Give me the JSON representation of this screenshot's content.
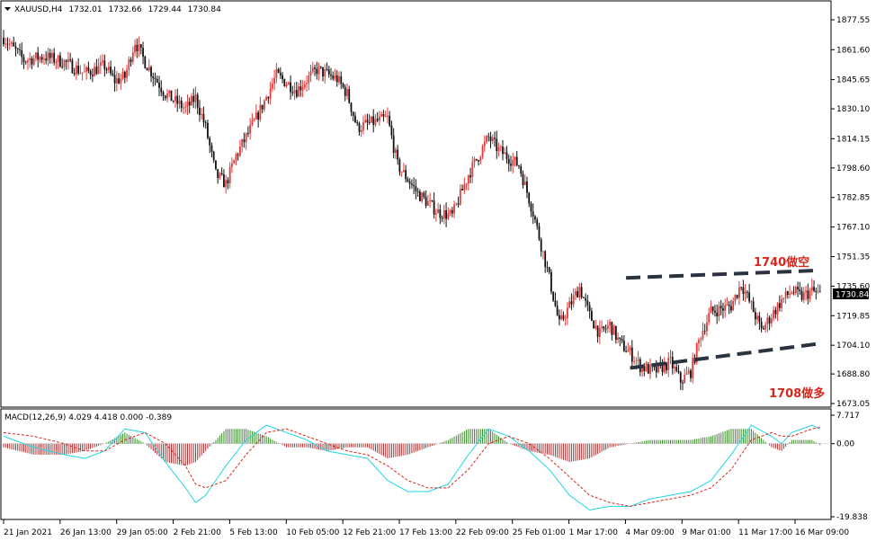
{
  "chart_data": [
    {
      "type": "candlestick",
      "title": "XAUUSD,H4",
      "ohlc_header": [
        "1732.01",
        "1732.66",
        "1729.44",
        "1730.84"
      ],
      "current_price": "1730.84",
      "yticks": [
        "1877.55",
        "1861.60",
        "1845.65",
        "1830.10",
        "1814.15",
        "1798.60",
        "1782.85",
        "1767.10",
        "1751.35",
        "1735.60",
        "1719.85",
        "1704.10",
        "1688.80",
        "1673.05"
      ],
      "ylim": [
        1673.05,
        1877.55
      ],
      "xticks": [
        "21 Jan 2021",
        "26 Jan 13:00",
        "29 Jan 05:00",
        "2 Feb 21:00",
        "5 Feb 13:00",
        "10 Feb 05:00",
        "12 Feb 21:00",
        "17 Feb 13:00",
        "22 Feb 09:00",
        "25 Feb 01:00",
        "1 Mar 17:00",
        "4 Mar 09:00",
        "9 Mar 01:00",
        "11 Mar 17:00",
        "16 Mar 09:00"
      ],
      "price_path": [
        [
          0,
          1868
        ],
        [
          10,
          1856
        ],
        [
          20,
          1858
        ],
        [
          30,
          1855
        ],
        [
          40,
          1849
        ],
        [
          50,
          1853
        ],
        [
          55,
          1845
        ],
        [
          60,
          1847
        ],
        [
          65,
          1866
        ],
        [
          70,
          1855
        ],
        [
          80,
          1838
        ],
        [
          90,
          1830
        ],
        [
          95,
          1836
        ],
        [
          100,
          1820
        ],
        [
          105,
          1795
        ],
        [
          110,
          1790
        ],
        [
          115,
          1805
        ],
        [
          125,
          1825
        ],
        [
          135,
          1848
        ],
        [
          145,
          1840
        ],
        [
          155,
          1851
        ],
        [
          165,
          1846
        ],
        [
          170,
          1838
        ],
        [
          175,
          1820
        ],
        [
          180,
          1822
        ],
        [
          190,
          1825
        ],
        [
          195,
          1800
        ],
        [
          205,
          1785
        ],
        [
          215,
          1775
        ],
        [
          222,
          1773
        ],
        [
          230,
          1795
        ],
        [
          240,
          1815
        ],
        [
          245,
          1808
        ],
        [
          255,
          1800
        ],
        [
          262,
          1775
        ],
        [
          270,
          1740
        ],
        [
          275,
          1715
        ],
        [
          280,
          1725
        ],
        [
          285,
          1735
        ],
        [
          290,
          1720
        ],
        [
          295,
          1710
        ],
        [
          300,
          1715
        ],
        [
          305,
          1705
        ],
        [
          310,
          1700
        ],
        [
          315,
          1693
        ],
        [
          322,
          1690
        ],
        [
          330,
          1695
        ],
        [
          335,
          1685
        ],
        [
          340,
          1690
        ],
        [
          345,
          1710
        ],
        [
          350,
          1722
        ],
        [
          360,
          1725
        ],
        [
          365,
          1737
        ],
        [
          370,
          1725
        ],
        [
          375,
          1712
        ],
        [
          380,
          1720
        ],
        [
          385,
          1728
        ],
        [
          390,
          1733
        ],
        [
          395,
          1730
        ],
        [
          400,
          1733
        ],
        [
          404,
          1730.84
        ]
      ],
      "annotations": [
        {
          "text": "1740做空",
          "line": [
            [
              1740,
              308
            ],
            [
              1744,
              404
            ]
          ]
        },
        {
          "text": "1708做多",
          "line": [
            [
              1692,
              310
            ],
            [
              1705,
              404
            ]
          ]
        }
      ],
      "colors": {
        "up": "#e23a3a",
        "down": "#111111",
        "trend": "#2b3340"
      }
    },
    {
      "type": "bar",
      "title": "MACD(12,26,9) 4.029 4.418 0.000 -0.389",
      "yticks": [
        "7.717",
        "0.00",
        "-19.838"
      ],
      "ylim": [
        -19.838,
        7.717
      ],
      "macd_path": [
        [
          0,
          2
        ],
        [
          15,
          -1
        ],
        [
          30,
          -3
        ],
        [
          40,
          -4
        ],
        [
          50,
          -2
        ],
        [
          60,
          4
        ],
        [
          70,
          3
        ],
        [
          80,
          -5
        ],
        [
          90,
          -12
        ],
        [
          95,
          -16
        ],
        [
          100,
          -14
        ],
        [
          110,
          -6
        ],
        [
          120,
          1
        ],
        [
          130,
          5
        ],
        [
          140,
          3
        ],
        [
          150,
          1
        ],
        [
          160,
          -2
        ],
        [
          170,
          -3
        ],
        [
          180,
          -4
        ],
        [
          190,
          -10
        ],
        [
          200,
          -13
        ],
        [
          210,
          -13
        ],
        [
          220,
          -11
        ],
        [
          230,
          -3
        ],
        [
          240,
          4
        ],
        [
          250,
          2
        ],
        [
          260,
          -2
        ],
        [
          270,
          -7
        ],
        [
          280,
          -14
        ],
        [
          290,
          -18
        ],
        [
          300,
          -17
        ],
        [
          310,
          -17
        ],
        [
          320,
          -15
        ],
        [
          330,
          -14
        ],
        [
          340,
          -13
        ],
        [
          350,
          -10
        ],
        [
          360,
          -3
        ],
        [
          365,
          1
        ],
        [
          370,
          5
        ],
        [
          380,
          2
        ],
        [
          385,
          0
        ],
        [
          390,
          3
        ],
        [
          400,
          5
        ],
        [
          404,
          4.0
        ]
      ],
      "signal_path": [
        [
          0,
          3
        ],
        [
          15,
          2
        ],
        [
          30,
          0
        ],
        [
          40,
          -2
        ],
        [
          50,
          -2
        ],
        [
          60,
          1
        ],
        [
          70,
          3
        ],
        [
          80,
          0
        ],
        [
          90,
          -6
        ],
        [
          95,
          -11
        ],
        [
          100,
          -12
        ],
        [
          110,
          -10
        ],
        [
          120,
          -3
        ],
        [
          130,
          3
        ],
        [
          140,
          4
        ],
        [
          150,
          2
        ],
        [
          160,
          0
        ],
        [
          170,
          -2
        ],
        [
          180,
          -3
        ],
        [
          190,
          -6
        ],
        [
          200,
          -10
        ],
        [
          210,
          -12
        ],
        [
          220,
          -12
        ],
        [
          230,
          -7
        ],
        [
          240,
          0
        ],
        [
          250,
          2
        ],
        [
          260,
          0
        ],
        [
          270,
          -4
        ],
        [
          280,
          -9
        ],
        [
          290,
          -14
        ],
        [
          300,
          -16
        ],
        [
          310,
          -17
        ],
        [
          320,
          -16
        ],
        [
          330,
          -15
        ],
        [
          340,
          -14
        ],
        [
          350,
          -12
        ],
        [
          360,
          -7
        ],
        [
          365,
          -3
        ],
        [
          370,
          1
        ],
        [
          380,
          3
        ],
        [
          385,
          2
        ],
        [
          390,
          2
        ],
        [
          400,
          4
        ],
        [
          404,
          4.4
        ]
      ],
      "colors": {
        "macd": "#1fd6e6",
        "signal": "#d8261c",
        "hist_up": "#3a8a2a",
        "hist_down": "#b03030"
      }
    }
  ]
}
